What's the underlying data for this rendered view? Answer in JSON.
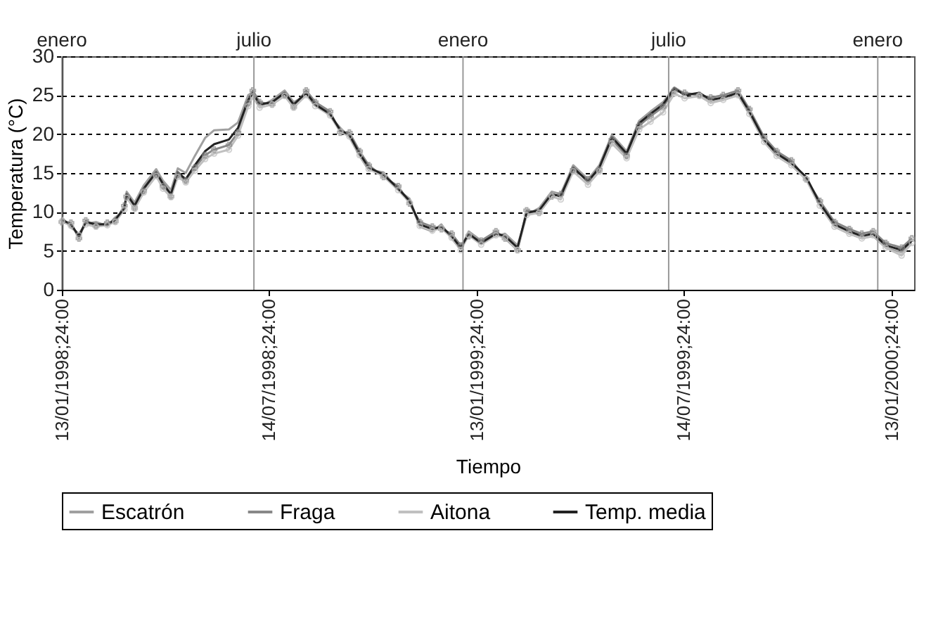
{
  "chart_data": {
    "type": "line",
    "xlabel": "Tiempo",
    "ylabel": "Temperatura (°C)",
    "x": [
      "1998-01-13",
      "1998-01-21",
      "1998-01-28",
      "1998-02-03",
      "1998-02-12",
      "1998-02-22",
      "1998-03-01",
      "1998-03-09",
      "1998-03-11",
      "1998-03-18",
      "1998-03-26",
      "1998-04-06",
      "1998-04-12",
      "1998-04-19",
      "1998-04-25",
      "1998-05-02",
      "1998-05-10",
      "1998-05-19",
      "1998-05-27",
      "1998-06-09",
      "1998-06-17",
      "1998-06-26",
      "1998-06-30",
      "1998-07-06",
      "1998-07-17",
      "1998-07-28",
      "1998-08-05",
      "1998-08-16",
      "1998-08-24",
      "1998-09-06",
      "1998-09-15",
      "1998-09-23",
      "1998-10-02",
      "1998-10-10",
      "1998-10-23",
      "1998-11-05",
      "1998-11-15",
      "1998-11-24",
      "1998-12-05",
      "1998-12-13",
      "1998-12-22",
      "1998-12-30",
      "1999-01-06",
      "1999-01-17",
      "1999-01-30",
      "1999-02-07",
      "1999-02-18",
      "1999-02-26",
      "1999-03-09",
      "1999-03-20",
      "1999-03-28",
      "1999-04-08",
      "1999-04-21",
      "1999-05-01",
      "1999-05-12",
      "1999-05-25",
      "1999-06-05",
      "1999-06-15",
      "1999-06-26",
      "1999-07-06",
      "1999-07-15",
      "1999-07-28",
      "1999-08-07",
      "1999-08-18",
      "1999-08-31",
      "1999-09-10",
      "1999-09-23",
      "1999-10-04",
      "1999-10-17",
      "1999-10-30",
      "1999-11-11",
      "1999-11-24",
      "1999-12-07",
      "1999-12-18",
      "1999-12-28",
      "2000-01-08",
      "2000-01-22",
      "2000-01-31"
    ],
    "series": [
      {
        "name": "Escatrón",
        "color": "#a0a0a0",
        "values": [
          9.3,
          8.0,
          7.2,
          8.5,
          8.7,
          8.2,
          9.3,
          10.2,
          12.6,
          11.2,
          13.4,
          15.5,
          14.0,
          12.8,
          15.6,
          15.0,
          17.2,
          19.5,
          20.5,
          20.6,
          21.5,
          25.0,
          25.4,
          23.5,
          24.4,
          25.6,
          24.1,
          25.0,
          24.0,
          22.3,
          20.8,
          19.6,
          17.2,
          15.4,
          15.1,
          12.8,
          11.7,
          8.1,
          7.5,
          8.4,
          6.6,
          5.2,
          7.5,
          6.3,
          6.9,
          7.2,
          5.7,
          9.6,
          10.5,
          12.6,
          12.3,
          16.0,
          14.2,
          16.0,
          19.9,
          17.8,
          21.7,
          22.9,
          24.1,
          26.0,
          25.2,
          25.0,
          24.1,
          24.4,
          25.0,
          22.6,
          19.0,
          17.2,
          16.0,
          14.2,
          10.8,
          8.1,
          7.2,
          6.6,
          6.9,
          5.4,
          4.8,
          6.0
        ]
      },
      {
        "name": "Fraga",
        "color": "#888888",
        "marker": "cross",
        "values": [
          8.7,
          8.6,
          6.6,
          8.9,
          8.2,
          8.6,
          8.8,
          10.8,
          12.0,
          10.5,
          12.7,
          14.8,
          13.3,
          12.0,
          14.8,
          14.0,
          15.7,
          17.3,
          18.0,
          18.6,
          20.2,
          24.0,
          25.6,
          24.1,
          23.8,
          25.0,
          23.5,
          25.6,
          24.1,
          22.9,
          20.2,
          20.2,
          17.8,
          16.0,
          14.5,
          13.3,
          11.1,
          8.7,
          8.1,
          7.8,
          7.2,
          5.7,
          6.9,
          6.3,
          7.5,
          6.6,
          5.1,
          10.2,
          9.9,
          12.0,
          12.3,
          15.4,
          14.2,
          15.4,
          19.3,
          17.2,
          21.1,
          22.3,
          23.5,
          25.6,
          25.3,
          25.0,
          24.7,
          25.0,
          25.6,
          23.2,
          19.6,
          17.8,
          16.6,
          14.2,
          11.4,
          8.7,
          7.8,
          7.2,
          7.5,
          6.0,
          5.4,
          6.6
        ]
      },
      {
        "name": "Aitona",
        "color": "#c0c0c0",
        "marker": "circle",
        "values": [
          8.8,
          8.2,
          7.0,
          8.4,
          8.1,
          8.3,
          8.7,
          10.3,
          11.8,
          10.4,
          12.5,
          14.6,
          13.0,
          11.9,
          14.5,
          13.8,
          15.3,
          16.8,
          17.5,
          18.0,
          19.8,
          23.6,
          24.8,
          23.4,
          23.8,
          24.9,
          23.4,
          25.0,
          23.6,
          22.4,
          20.3,
          19.7,
          17.3,
          15.5,
          14.6,
          12.8,
          11.2,
          8.2,
          7.6,
          7.9,
          6.7,
          5.1,
          7.0,
          5.8,
          7.0,
          6.7,
          5.1,
          9.6,
          9.9,
          12.0,
          11.6,
          15.2,
          13.5,
          15.2,
          18.8,
          16.9,
          20.6,
          21.6,
          22.8,
          25.2,
          24.6,
          24.9,
          24.0,
          24.4,
          25.0,
          22.6,
          19.0,
          17.2,
          16.0,
          14.2,
          10.8,
          8.1,
          7.2,
          6.6,
          7.0,
          5.4,
          4.4,
          6.0
        ]
      },
      {
        "name": "Temp. media",
        "color": "#222222",
        "values": [
          9.0,
          8.4,
          6.9,
          8.7,
          8.4,
          8.4,
          9.0,
          10.5,
          12.3,
          10.8,
          13.0,
          15.1,
          13.6,
          12.3,
          15.1,
          14.2,
          16.0,
          17.8,
          18.7,
          19.3,
          20.8,
          24.4,
          25.3,
          23.8,
          24.1,
          25.3,
          23.8,
          25.3,
          23.8,
          22.6,
          20.5,
          19.9,
          17.5,
          15.7,
          14.8,
          13.0,
          11.4,
          8.4,
          7.8,
          8.1,
          6.9,
          5.4,
          7.2,
          6.0,
          7.2,
          6.9,
          5.4,
          9.9,
          10.2,
          12.3,
          12.0,
          15.7,
          13.9,
          15.7,
          19.6,
          17.5,
          21.4,
          22.6,
          23.8,
          25.9,
          25.0,
          25.3,
          24.4,
          24.7,
          25.3,
          22.9,
          19.3,
          17.5,
          16.3,
          14.5,
          11.1,
          8.4,
          7.5,
          6.9,
          7.2,
          5.7,
          5.1,
          6.3
        ]
      }
    ],
    "xlim": [
      "1998-01-13",
      "2000-02-02"
    ],
    "xticks": [
      {
        "value": "1998-01-13",
        "label": "13/01/1998;24:00"
      },
      {
        "value": "1998-07-14",
        "label": "14/07/1998;24:00"
      },
      {
        "value": "1999-01-13",
        "label": "13/01/1999;24:00"
      },
      {
        "value": "1999-07-14",
        "label": "14/07/1999;24:00"
      },
      {
        "value": "2000-01-13",
        "label": "13/01/2000;24:00"
      }
    ],
    "ylim": [
      0,
      30
    ],
    "yticks": [
      0,
      5,
      10,
      15,
      20,
      25,
      30
    ],
    "ref_lines": [
      {
        "axis": "x",
        "value": "1998-01-13",
        "label": "enero",
        "color": "#999999"
      },
      {
        "axis": "x",
        "value": "1998-07-01",
        "label": "julio",
        "color": "#999999"
      },
      {
        "axis": "x",
        "value": "1999-01-01",
        "label": "enero",
        "color": "#999999"
      },
      {
        "axis": "x",
        "value": "1999-07-01",
        "label": "julio",
        "color": "#999999"
      },
      {
        "axis": "x",
        "value": "2000-01-01",
        "label": "enero",
        "color": "#999999"
      }
    ],
    "grid": "y",
    "legend": "bottom"
  }
}
